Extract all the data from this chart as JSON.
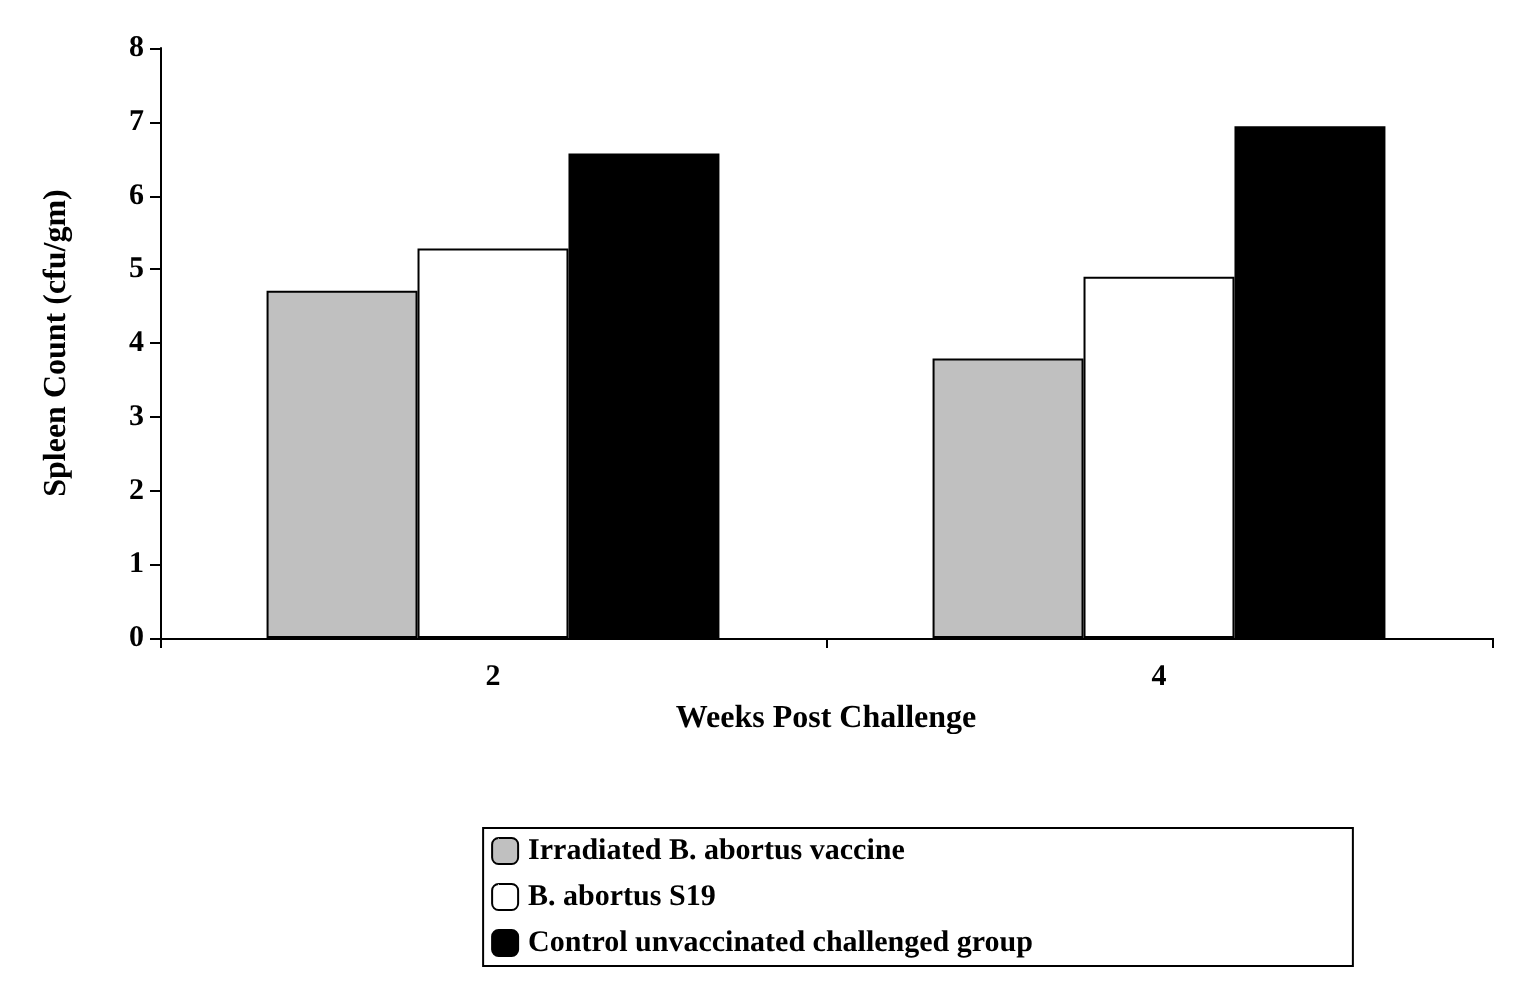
{
  "chart_data": {
    "type": "bar",
    "xlabel": "Weeks Post Challenge",
    "ylabel": "Spleen Count (cfu/gm)",
    "categories": [
      "2",
      "4"
    ],
    "series": [
      {
        "name": "Irradiated B. abortus vaccine",
        "color": "#c0c0c0",
        "values": [
          4.71,
          3.79
        ]
      },
      {
        "name": "B. abortus S19",
        "color": "#ffffff",
        "values": [
          5.28,
          4.9
        ]
      },
      {
        "name": "Control unvaccinated challenged group",
        "color": "#000000",
        "values": [
          6.57,
          6.94
        ]
      }
    ],
    "ylim": [
      0,
      8
    ],
    "yticks": [
      0,
      1,
      2,
      3,
      4,
      5,
      6,
      7,
      8
    ],
    "grid": false,
    "legend": "bottom"
  }
}
